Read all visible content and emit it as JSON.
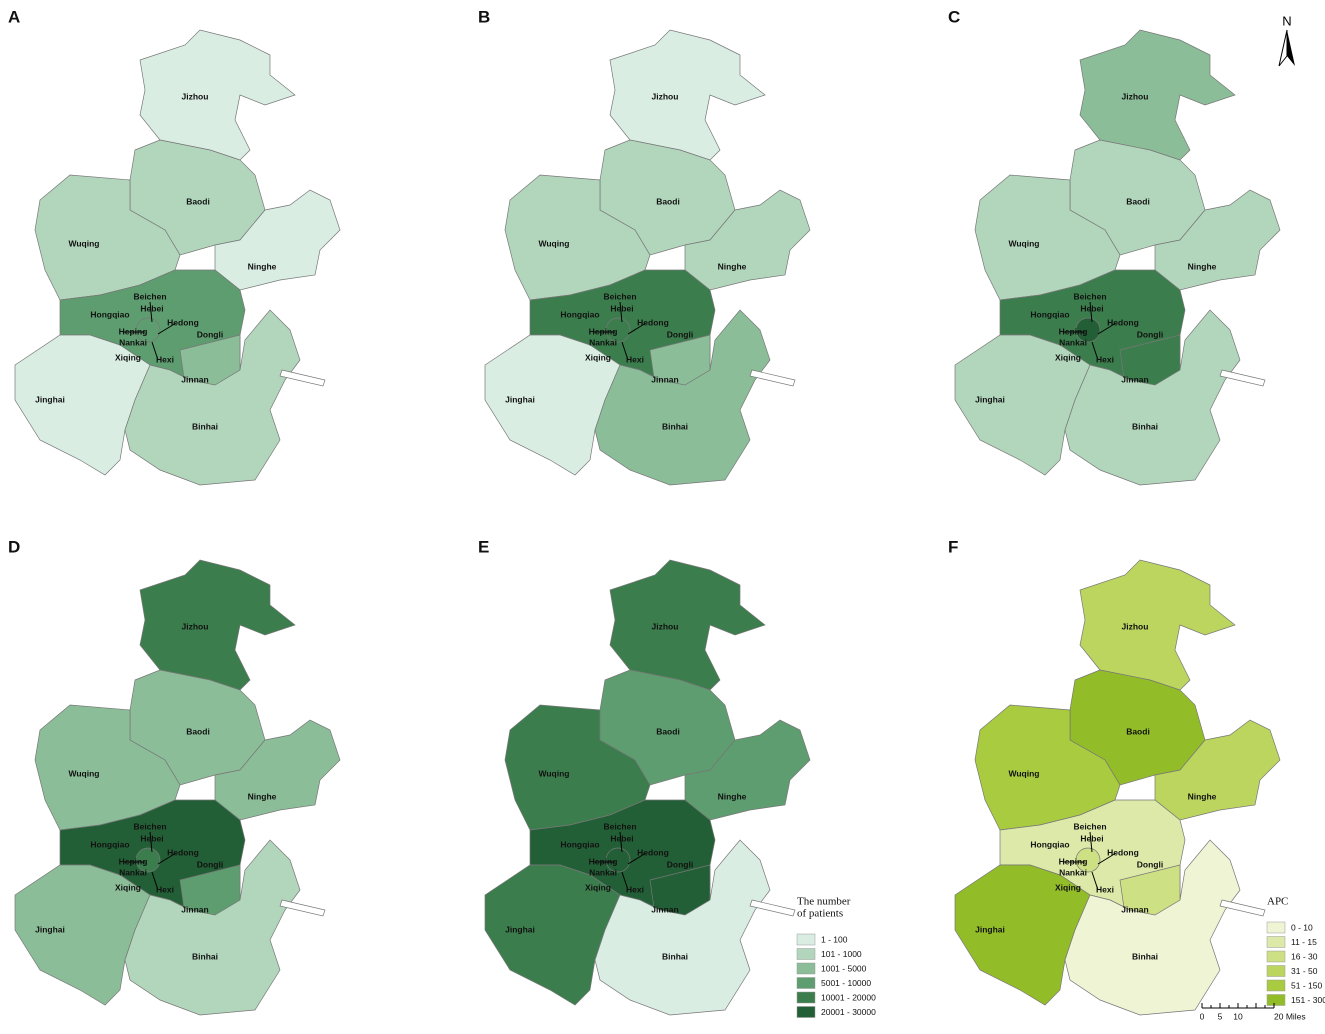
{
  "panels": [
    {
      "label": "A",
      "regions": [
        {
          "name": "Jizhou",
          "color": "#d9ede3"
        },
        {
          "name": "Baodi",
          "color": "#b2d6bc"
        },
        {
          "name": "Wuqing",
          "color": "#b2d6bc"
        },
        {
          "name": "Ninghe",
          "color": "#d9ede3"
        },
        {
          "name": "Xiqing",
          "color": "#5e9d6f"
        },
        {
          "name": "Jinnan",
          "color": "#8bbd98"
        },
        {
          "name": "Jinghai",
          "color": "#d9ede3"
        },
        {
          "name": "Binhai",
          "color": "#b2d6bc"
        },
        {
          "name": "Heping",
          "color": "#5e9d6f"
        }
      ],
      "other_labels": [
        "Beichen",
        "Hongqiao",
        "Hebei",
        "Nankai",
        "Hedong",
        "Dongli",
        "Hexi"
      ]
    },
    {
      "label": "B",
      "regions": [
        {
          "name": "Jizhou",
          "color": "#d9ede3"
        },
        {
          "name": "Baodi",
          "color": "#b2d6bc"
        },
        {
          "name": "Wuqing",
          "color": "#b2d6bc"
        },
        {
          "name": "Ninghe",
          "color": "#b2d6bc"
        },
        {
          "name": "Xiqing",
          "color": "#3c7d4d"
        },
        {
          "name": "Jinnan",
          "color": "#8bbd98"
        },
        {
          "name": "Jinghai",
          "color": "#d9ede3"
        },
        {
          "name": "Binhai",
          "color": "#8bbd98"
        },
        {
          "name": "Heping",
          "color": "#3c7d4d"
        }
      ],
      "other_labels": [
        "Beichen",
        "Hongqiao",
        "Hebei",
        "Nankai",
        "Hedong",
        "Dongli",
        "Hexi"
      ]
    },
    {
      "label": "C",
      "regions": [
        {
          "name": "Jizhou",
          "color": "#8bbd98"
        },
        {
          "name": "Baodi",
          "color": "#b2d6bc"
        },
        {
          "name": "Wuqing",
          "color": "#b2d6bc"
        },
        {
          "name": "Ninghe",
          "color": "#b2d6bc"
        },
        {
          "name": "Xiqing",
          "color": "#3c7d4d"
        },
        {
          "name": "Jinnan",
          "color": "#3c7d4d"
        },
        {
          "name": "Jinghai",
          "color": "#b2d6bc"
        },
        {
          "name": "Binhai",
          "color": "#b2d6bc"
        },
        {
          "name": "Heping",
          "color": "#235f36"
        }
      ],
      "other_labels": [
        "Beichen",
        "Hongqiao",
        "Hebei",
        "Nankai",
        "Hedong",
        "Dongli",
        "Hexi"
      ]
    },
    {
      "label": "D",
      "regions": [
        {
          "name": "Jizhou",
          "color": "#3c7d4d"
        },
        {
          "name": "Baodi",
          "color": "#8bbd98"
        },
        {
          "name": "Wuqing",
          "color": "#8bbd98"
        },
        {
          "name": "Ninghe",
          "color": "#8bbd98"
        },
        {
          "name": "Xiqing",
          "color": "#235f36"
        },
        {
          "name": "Jinnan",
          "color": "#5e9d6f"
        },
        {
          "name": "Jinghai",
          "color": "#8bbd98"
        },
        {
          "name": "Binhai",
          "color": "#b2d6bc"
        },
        {
          "name": "Heping",
          "color": "#3c7d4d"
        }
      ],
      "other_labels": [
        "Beichen",
        "Hongqiao",
        "Hebei",
        "Nankai",
        "Hedong",
        "Dongli",
        "Hexi"
      ]
    },
    {
      "label": "E",
      "regions": [
        {
          "name": "Jizhou",
          "color": "#3c7d4d"
        },
        {
          "name": "Baodi",
          "color": "#5e9d6f"
        },
        {
          "name": "Wuqing",
          "color": "#3c7d4d"
        },
        {
          "name": "Ninghe",
          "color": "#5e9d6f"
        },
        {
          "name": "Xiqing",
          "color": "#235f36"
        },
        {
          "name": "Jinnan",
          "color": "#235f36"
        },
        {
          "name": "Jinghai",
          "color": "#3c7d4d"
        },
        {
          "name": "Binhai",
          "color": "#d9ede3"
        },
        {
          "name": "Heping",
          "color": "#235f36"
        }
      ],
      "other_labels": [
        "Beichen",
        "Hongqiao",
        "Hebei",
        "Nankai",
        "Hedong",
        "Dongli",
        "Hexi"
      ],
      "legend": {
        "title_lines": [
          "The number",
          "of patients"
        ],
        "items": [
          {
            "label": "1 - 100",
            "color": "#d9ede3"
          },
          {
            "label": "101 - 1000",
            "color": "#b2d6bc"
          },
          {
            "label": "1001 - 5000",
            "color": "#8bbd98"
          },
          {
            "label": "5001 - 10000",
            "color": "#5e9d6f"
          },
          {
            "label": "10001 - 20000",
            "color": "#3c7d4d"
          },
          {
            "label": "20001 - 30000",
            "color": "#235f36"
          }
        ]
      }
    },
    {
      "label": "F",
      "regions": [
        {
          "name": "Jizhou",
          "color": "#bcd55e"
        },
        {
          "name": "Baodi",
          "color": "#93bd28"
        },
        {
          "name": "Wuqing",
          "color": "#a9cb3f"
        },
        {
          "name": "Ninghe",
          "color": "#bcd55e"
        },
        {
          "name": "Xiqing",
          "color": "#dde9a8"
        },
        {
          "name": "Jinnan",
          "color": "#cde084"
        },
        {
          "name": "Jinghai",
          "color": "#93bd28"
        },
        {
          "name": "Binhai",
          "color": "#eef4d4"
        },
        {
          "name": "Heping",
          "color": "#cde084"
        }
      ],
      "other_labels": [
        "Beichen",
        "Hongqiao",
        "Hebei",
        "Nankai",
        "Hedong",
        "Dongli",
        "Hexi"
      ],
      "legend": {
        "title_lines": [
          "APC"
        ],
        "items": [
          {
            "label": "0 - 10",
            "color": "#eef4d4"
          },
          {
            "label": "11 - 15",
            "color": "#dde9a8"
          },
          {
            "label": "16 - 30",
            "color": "#cde084"
          },
          {
            "label": "31 - 50",
            "color": "#bcd55e"
          },
          {
            "label": "51 - 150",
            "color": "#a9cb3f"
          },
          {
            "label": "151 - 300",
            "color": "#93bd28"
          }
        ]
      },
      "scale_bar": {
        "labels": [
          "0",
          "5",
          "10",
          "20 Miles"
        ]
      }
    }
  ],
  "north_arrow": "N"
}
